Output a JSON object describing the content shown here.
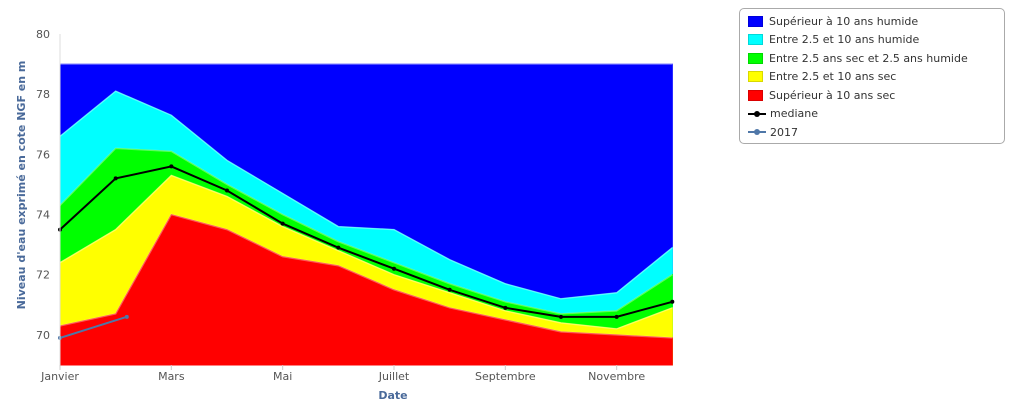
{
  "chart_data": {
    "type": "area",
    "title": "",
    "xlabel": "Date",
    "ylabel": "Niveau d'eau exprimé en cote NGF en m",
    "ylim": [
      69,
      80
    ],
    "yticks": [
      70,
      72,
      74,
      76,
      78,
      80
    ],
    "xlim": [
      0,
      12
    ],
    "xticks": [
      {
        "x": 0,
        "label": "Janvier"
      },
      {
        "x": 2,
        "label": "Mars"
      },
      {
        "x": 4,
        "label": "Mai"
      },
      {
        "x": 6,
        "label": "Juillet"
      },
      {
        "x": 8,
        "label": "Septembre"
      },
      {
        "x": 10,
        "label": "Novembre"
      }
    ],
    "x": [
      0,
      1,
      2,
      3,
      4,
      5,
      6,
      7,
      8,
      9,
      10,
      11
    ],
    "series": [
      {
        "name": "Supérieur à 10 ans humide",
        "color": "#0000ff",
        "values": [
          79,
          79,
          79,
          79,
          79,
          79,
          79,
          79,
          79,
          79,
          79,
          79
        ]
      },
      {
        "name": "Entre 2.5 et 10 ans humide",
        "color": "#00ffff",
        "values": [
          76.6,
          78.1,
          77.3,
          75.8,
          74.7,
          73.6,
          73.5,
          72.5,
          71.7,
          71.2,
          71.4,
          72.9
        ]
      },
      {
        "name": "Entre 2.5 ans sec et 2.5 ans humide",
        "color": "#00ff00",
        "values": [
          74.3,
          76.2,
          76.1,
          75.0,
          74.0,
          73.1,
          72.4,
          71.7,
          71.1,
          70.7,
          70.8,
          72.0
        ]
      },
      {
        "name": "Entre 2.5 et 10 ans sec",
        "color": "#ffff00",
        "values": [
          72.4,
          73.5,
          75.3,
          74.6,
          73.6,
          72.8,
          72.0,
          71.4,
          70.8,
          70.4,
          70.2,
          70.9
        ]
      },
      {
        "name": "Supérieur à 10 ans sec",
        "color": "#ff0000",
        "values": [
          70.3,
          70.7,
          74.0,
          73.5,
          72.6,
          72.3,
          71.5,
          70.9,
          70.5,
          70.1,
          70.0,
          69.9
        ]
      }
    ],
    "lines": [
      {
        "name": "mediane",
        "color": "#000000",
        "values": [
          73.5,
          75.2,
          75.6,
          74.8,
          73.7,
          72.9,
          72.2,
          71.5,
          70.9,
          70.6,
          70.6,
          71.1
        ]
      },
      {
        "name": "2017",
        "color": "#4f77a8",
        "x": [
          0,
          1.2
        ],
        "values": [
          69.9,
          70.6
        ]
      }
    ],
    "legend": "top-right",
    "grid": false
  }
}
